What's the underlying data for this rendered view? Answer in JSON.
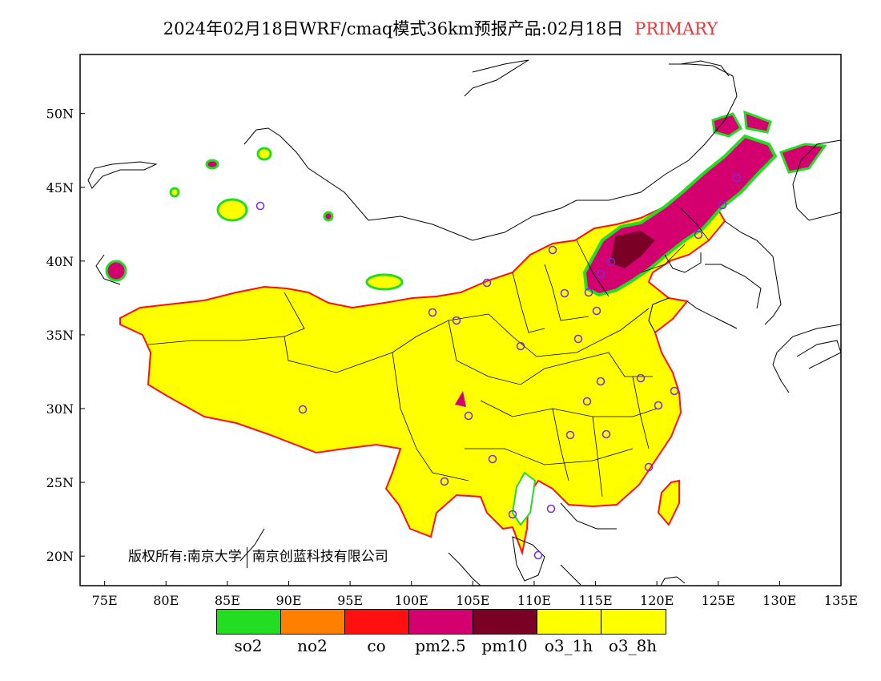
{
  "title": {
    "main": "2024年02月18日WRF/cmaq模式36km预报产品:02月18日",
    "tag": "PRIMARY"
  },
  "copyright": {
    "part1": "版权所有:南京大学",
    "part2": "南京创蓝科技有限公司"
  },
  "axes": {
    "lon_min": 73,
    "lon_max": 135,
    "lat_min": 18,
    "lat_max": 54,
    "lon_ticks": [
      "75E",
      "80E",
      "85E",
      "90E",
      "95E",
      "100E",
      "105E",
      "110E",
      "115E",
      "120E",
      "125E",
      "130E",
      "135E"
    ],
    "lat_ticks": [
      "20N",
      "25N",
      "30N",
      "35N",
      "40N",
      "45N",
      "50N"
    ]
  },
  "legend": [
    {
      "label": "so2",
      "color": "#22dd22"
    },
    {
      "label": "no2",
      "color": "#ff8000"
    },
    {
      "label": "co",
      "color": "#ff1010"
    },
    {
      "label": "pm2.5",
      "color": "#d4006f"
    },
    {
      "label": "pm10",
      "color": "#7a0026"
    },
    {
      "label": "o3_1h",
      "color": "#ffff00"
    },
    {
      "label": "o3_8h",
      "color": "#ffff00"
    }
  ]
}
